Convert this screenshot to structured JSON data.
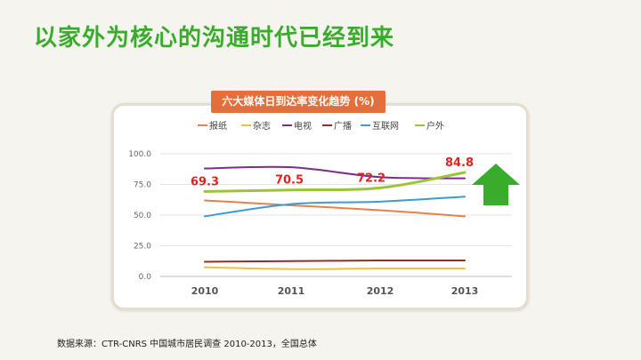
{
  "slide": {
    "title": "以家外为核心的沟通时代已经到来",
    "source": "数据来源：CTR-CNRS 中国城市居民调查 2010-2013，全国总体"
  },
  "chart_data": {
    "type": "line",
    "title": "六大媒体日到达率变化趋势 (%)",
    "categories": [
      "2010",
      "2011",
      "2012",
      "2013"
    ],
    "ylim": [
      0,
      100
    ],
    "yticks": [
      "0.0",
      "25.0",
      "50.0",
      "75.0",
      "100.0"
    ],
    "grid": true,
    "legend_position": "top",
    "series": [
      {
        "name": "报纸",
        "color": "#e8804a",
        "values": [
          62,
          58,
          54,
          49
        ]
      },
      {
        "name": "杂志",
        "color": "#f0c23a",
        "values": [
          7.5,
          6,
          6.5,
          6.5
        ]
      },
      {
        "name": "电视",
        "color": "#7a2d8c",
        "values": [
          88,
          89,
          81,
          80
        ]
      },
      {
        "name": "广播",
        "color": "#8e2f2a",
        "values": [
          12,
          12.5,
          13,
          13
        ]
      },
      {
        "name": "互联网",
        "color": "#3a9bd5",
        "values": [
          49,
          59,
          61,
          65
        ]
      },
      {
        "name": "户外",
        "color": "#9cc437",
        "values": [
          69.3,
          70.5,
          72.2,
          84.8
        ]
      }
    ],
    "annotations": {
      "series": "户外",
      "labels": [
        "69.3",
        "70.5",
        "72.2",
        "84.8"
      ],
      "color": "#e0231f"
    },
    "trend_arrow": {
      "direction": "up",
      "color": "#3aac2c"
    }
  }
}
